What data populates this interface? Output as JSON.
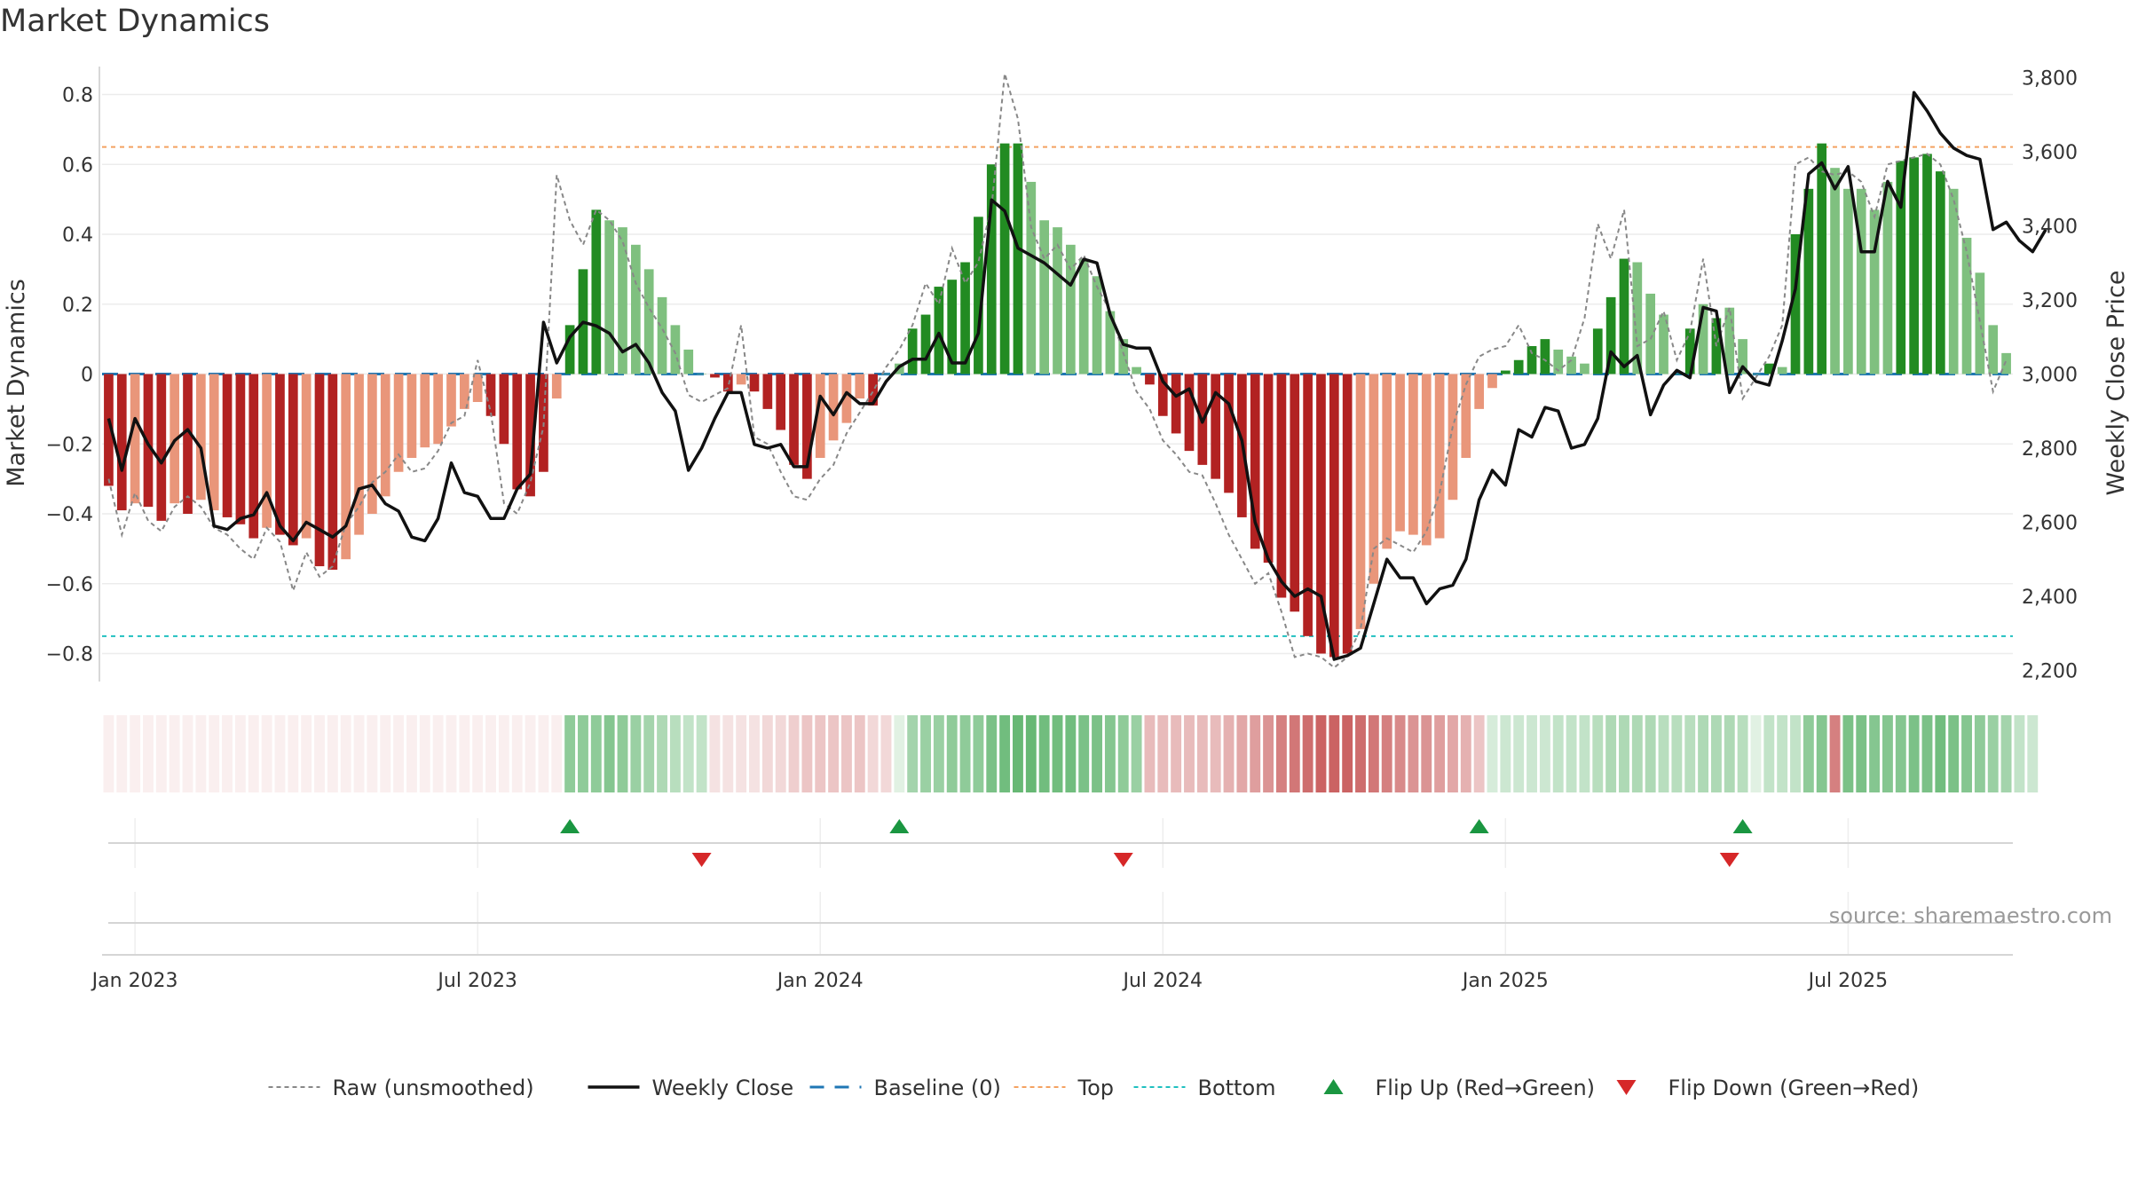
{
  "title": "Market Dynamics",
  "source": "source: sharemaestro.com",
  "chart_data": {
    "type": "bar",
    "title": "Market Dynamics",
    "ylabel_left": "Market Dynamics",
    "ylabel_right": "Weekly Close Price",
    "ylim_left": [
      -0.88,
      0.88
    ],
    "ylim_right": [
      2170,
      3830
    ],
    "yticks_left": [
      {
        "v": 0.8,
        "label": "0.8"
      },
      {
        "v": 0.6,
        "label": "0.6"
      },
      {
        "v": 0.4,
        "label": "0.4"
      },
      {
        "v": 0.2,
        "label": "0.2"
      },
      {
        "v": 0.0,
        "label": "0"
      },
      {
        "v": -0.2,
        "label": "−0.2"
      },
      {
        "v": -0.4,
        "label": "−0.4"
      },
      {
        "v": -0.6,
        "label": "−0.6"
      },
      {
        "v": -0.8,
        "label": "−0.8"
      }
    ],
    "yticks_right": [
      {
        "v": 3800,
        "label": "3,800"
      },
      {
        "v": 3600,
        "label": "3,600"
      },
      {
        "v": 3400,
        "label": "3,400"
      },
      {
        "v": 3200,
        "label": "3,200"
      },
      {
        "v": 3000,
        "label": "3,000"
      },
      {
        "v": 2800,
        "label": "2,800"
      },
      {
        "v": 2600,
        "label": "2,600"
      },
      {
        "v": 2400,
        "label": "2,400"
      },
      {
        "v": 2200,
        "label": "2,200"
      }
    ],
    "xticks": [
      {
        "week": 2,
        "label": "Jan 2023"
      },
      {
        "week": 28,
        "label": "Jul 2023"
      },
      {
        "week": 54,
        "label": "Jan 2024"
      },
      {
        "week": 80,
        "label": "Jul 2024"
      },
      {
        "week": 106,
        "label": "Jan 2025"
      },
      {
        "week": 132,
        "label": "Jul 2025"
      }
    ],
    "top_level": 0.65,
    "bottom_level": -0.75,
    "baseline": 0,
    "legend_position": "bottom",
    "colors": {
      "strong_red": "#b22222",
      "weak_red": "#e9967a",
      "strong_green": "#228b22",
      "weak_green": "#7fc07f",
      "raw": "#888888",
      "close": "#111111",
      "baseline": "#1f77b4",
      "top": "#f4a261",
      "bottom": "#20c0c0",
      "flip_up": "#1a9641",
      "flip_down": "#d62728"
    },
    "momentum": [
      -0.32,
      -0.39,
      -0.37,
      -0.38,
      -0.42,
      -0.37,
      -0.4,
      -0.36,
      -0.39,
      -0.41,
      -0.43,
      -0.47,
      -0.44,
      -0.46,
      -0.49,
      -0.47,
      -0.55,
      -0.56,
      -0.53,
      -0.46,
      -0.4,
      -0.35,
      -0.28,
      -0.24,
      -0.21,
      -0.2,
      -0.15,
      -0.1,
      -0.08,
      -0.12,
      -0.2,
      -0.33,
      -0.35,
      -0.28,
      -0.07,
      0.14,
      0.3,
      0.47,
      0.44,
      0.42,
      0.37,
      0.3,
      0.22,
      0.14,
      0.07,
      0.0,
      -0.01,
      -0.05,
      -0.03,
      -0.05,
      -0.1,
      -0.16,
      -0.26,
      -0.3,
      -0.24,
      -0.19,
      -0.14,
      -0.07,
      -0.09,
      0.0,
      0.03,
      0.13,
      0.17,
      0.25,
      0.27,
      0.32,
      0.45,
      0.6,
      0.66,
      0.66,
      0.55,
      0.44,
      0.42,
      0.37,
      0.33,
      0.28,
      0.18,
      0.1,
      0.02,
      -0.03,
      -0.12,
      -0.17,
      -0.22,
      -0.26,
      -0.3,
      -0.34,
      -0.41,
      -0.5,
      -0.54,
      -0.64,
      -0.68,
      -0.75,
      -0.8,
      -0.81,
      -0.8,
      -0.73,
      -0.6,
      -0.5,
      -0.45,
      -0.46,
      -0.49,
      -0.47,
      -0.36,
      -0.24,
      -0.1,
      -0.04,
      0.01,
      0.04,
      0.08,
      0.1,
      0.07,
      0.05,
      0.03,
      0.13,
      0.22,
      0.33,
      0.32,
      0.23,
      0.17,
      0.0,
      0.13,
      0.2,
      0.16,
      0.19,
      0.1,
      0.0,
      0.03,
      0.02,
      0.4,
      0.53,
      0.66,
      0.59,
      0.53,
      0.53,
      0.47,
      0.55,
      0.61,
      0.62,
      0.63,
      0.58,
      0.53,
      0.39,
      0.29,
      0.14,
      0.06
    ],
    "bar_shade": [
      "S",
      "S",
      "W",
      "S",
      "S",
      "W",
      "S",
      "W",
      "W",
      "S",
      "S",
      "S",
      "W",
      "S",
      "S",
      "W",
      "S",
      "S",
      "W",
      "W",
      "W",
      "W",
      "W",
      "W",
      "W",
      "W",
      "W",
      "W",
      "W",
      "S",
      "S",
      "S",
      "S",
      "S",
      "W",
      "S",
      "S",
      "S",
      "W",
      "W",
      "W",
      "W",
      "W",
      "W",
      "W",
      "W",
      "S",
      "S",
      "W",
      "S",
      "S",
      "S",
      "S",
      "S",
      "W",
      "W",
      "W",
      "W",
      "S",
      "W",
      "W",
      "S",
      "S",
      "S",
      "S",
      "S",
      "S",
      "S",
      "S",
      "S",
      "W",
      "W",
      "W",
      "W",
      "W",
      "W",
      "W",
      "W",
      "W",
      "S",
      "S",
      "S",
      "S",
      "S",
      "S",
      "S",
      "S",
      "S",
      "S",
      "S",
      "S",
      "S",
      "S",
      "S",
      "S",
      "W",
      "W",
      "W",
      "W",
      "W",
      "W",
      "W",
      "W",
      "W",
      "W",
      "W",
      "S",
      "S",
      "S",
      "S",
      "W",
      "W",
      "W",
      "S",
      "S",
      "S",
      "W",
      "W",
      "W",
      "S",
      "S",
      "W",
      "S",
      "W",
      "W",
      "W",
      "S",
      "W",
      "S",
      "S",
      "S",
      "W",
      "W",
      "W",
      "W",
      "W",
      "S",
      "S",
      "S",
      "S",
      "W",
      "W",
      "W",
      "W",
      "W"
    ],
    "raw": [
      -0.3,
      -0.46,
      -0.34,
      -0.42,
      -0.45,
      -0.38,
      -0.35,
      -0.38,
      -0.44,
      -0.46,
      -0.5,
      -0.53,
      -0.44,
      -0.48,
      -0.62,
      -0.51,
      -0.58,
      -0.55,
      -0.43,
      -0.38,
      -0.31,
      -0.28,
      -0.23,
      -0.28,
      -0.27,
      -0.22,
      -0.14,
      -0.12,
      0.04,
      -0.11,
      -0.37,
      -0.4,
      -0.31,
      -0.15,
      0.57,
      0.44,
      0.37,
      0.47,
      0.44,
      0.38,
      0.26,
      0.19,
      0.13,
      0.06,
      -0.06,
      -0.08,
      -0.06,
      -0.04,
      0.14,
      -0.18,
      -0.2,
      -0.28,
      -0.35,
      -0.36,
      -0.3,
      -0.26,
      -0.17,
      -0.11,
      -0.05,
      0.02,
      0.07,
      0.14,
      0.26,
      0.2,
      0.36,
      0.26,
      0.32,
      0.48,
      0.86,
      0.73,
      0.42,
      0.33,
      0.37,
      0.3,
      0.34,
      0.25,
      0.18,
      0.06,
      -0.05,
      -0.1,
      -0.19,
      -0.23,
      -0.28,
      -0.29,
      -0.37,
      -0.46,
      -0.53,
      -0.6,
      -0.57,
      -0.68,
      -0.81,
      -0.8,
      -0.81,
      -0.84,
      -0.81,
      -0.73,
      -0.5,
      -0.47,
      -0.49,
      -0.51,
      -0.45,
      -0.34,
      -0.15,
      -0.03,
      0.05,
      0.07,
      0.08,
      0.14,
      0.06,
      0.04,
      0.01,
      0.04,
      0.16,
      0.43,
      0.33,
      0.47,
      0.08,
      0.1,
      0.18,
      0.04,
      0.12,
      0.33,
      0.08,
      0.19,
      -0.07,
      -0.01,
      0.05,
      0.14,
      0.6,
      0.62,
      0.58,
      0.57,
      0.58,
      0.55,
      0.45,
      0.6,
      0.61,
      0.62,
      0.63,
      0.6,
      0.5,
      0.35,
      0.15,
      -0.05,
      0.04
    ],
    "close": [
      2880,
      2740,
      2880,
      2810,
      2760,
      2820,
      2850,
      2800,
      2590,
      2580,
      2610,
      2620,
      2680,
      2590,
      2550,
      2600,
      2580,
      2560,
      2590,
      2690,
      2700,
      2650,
      2630,
      2560,
      2550,
      2610,
      2760,
      2680,
      2670,
      2610,
      2610,
      2690,
      2730,
      3140,
      3030,
      3100,
      3140,
      3130,
      3110,
      3060,
      3080,
      3030,
      2950,
      2900,
      2740,
      2800,
      2880,
      2950,
      2950,
      2810,
      2800,
      2810,
      2750,
      2750,
      2940,
      2890,
      2950,
      2920,
      2920,
      2980,
      3020,
      3040,
      3040,
      3110,
      3030,
      3030,
      3110,
      3470,
      3440,
      3340,
      3320,
      3300,
      3270,
      3240,
      3310,
      3300,
      3160,
      3080,
      3070,
      3070,
      2980,
      2940,
      2960,
      2870,
      2950,
      2920,
      2820,
      2600,
      2500,
      2440,
      2400,
      2420,
      2400,
      2230,
      2240,
      2260,
      2380,
      2500,
      2450,
      2450,
      2380,
      2420,
      2430,
      2500,
      2660,
      2740,
      2700,
      2850,
      2830,
      2910,
      2900,
      2800,
      2810,
      2880,
      3060,
      3020,
      3050,
      2890,
      2970,
      3010,
      2990,
      3180,
      3170,
      2950,
      3020,
      2980,
      2970,
      3090,
      3230,
      3540,
      3570,
      3500,
      3560,
      3330,
      3330,
      3520,
      3450,
      3760,
      3710,
      3650,
      3610,
      3590,
      3580,
      3390,
      3410,
      3360,
      3330,
      3390
    ],
    "heat_strip": [
      -0.55,
      -0.55,
      -0.55,
      -0.55,
      -0.55,
      -0.55,
      -0.55,
      -0.55,
      -0.6,
      -0.6,
      -0.6,
      -0.6,
      -0.6,
      -0.6,
      -0.62,
      -0.62,
      -0.62,
      -0.62,
      -0.5,
      -0.4,
      -0.4,
      -0.4,
      -0.35,
      -0.3,
      -0.3,
      -0.3,
      -0.25,
      -0.25,
      -0.2,
      -0.2,
      -0.2,
      -0.2,
      -0.2,
      -0.2,
      -0.15,
      0.55,
      0.55,
      0.55,
      0.6,
      0.55,
      0.5,
      0.45,
      0.4,
      0.35,
      0.3,
      0.3,
      0.15,
      0.15,
      0.15,
      0.15,
      0.2,
      0.2,
      0.25,
      0.3,
      0.3,
      0.3,
      0.3,
      0.3,
      0.2,
      0.2,
      0.15,
      0.45,
      0.5,
      0.5,
      0.55,
      0.55,
      0.55,
      0.65,
      0.7,
      0.75,
      0.75,
      0.7,
      0.7,
      0.7,
      0.65,
      0.65,
      0.6,
      0.55,
      0.5,
      0.35,
      0.35,
      0.35,
      0.35,
      0.35,
      0.35,
      0.4,
      0.45,
      0.5,
      0.55,
      0.65,
      0.7,
      0.75,
      0.8,
      0.8,
      0.8,
      0.75,
      0.7,
      0.65,
      0.6,
      0.55,
      0.55,
      0.5,
      0.45,
      0.4,
      0.3,
      0.2,
      0.25,
      0.25,
      0.25,
      0.25,
      0.3,
      0.3,
      0.3,
      0.35,
      0.4,
      0.4,
      0.4,
      0.4,
      0.35,
      0.35,
      0.35,
      0.4,
      0.4,
      0.4,
      0.35,
      0.15,
      0.3,
      0.3,
      0.3,
      0.55,
      0.6,
      0.65,
      0.65,
      0.65,
      0.6,
      0.6,
      0.6,
      0.65,
      0.65,
      0.7,
      0.65,
      0.6,
      0.55,
      0.5,
      0.45,
      0.3,
      0.25
    ],
    "heat_strip_sign": [
      -1,
      -1,
      -1,
      -1,
      -1,
      -1,
      -1,
      -1,
      -1,
      -1,
      -1,
      -1,
      -1,
      -1,
      -1,
      -1,
      -1,
      -1,
      -1,
      -1,
      -1,
      -1,
      -1,
      -1,
      -1,
      -1,
      -1,
      -1,
      -1,
      -1,
      -1,
      -1,
      -1,
      -1,
      -1,
      1,
      1,
      1,
      1,
      1,
      1,
      1,
      1,
      1,
      1,
      1,
      -1,
      -1,
      -1,
      -1,
      -1,
      -1,
      -1,
      -1,
      -1,
      -1,
      -1,
      -1,
      -1,
      -1,
      1,
      1,
      1,
      1,
      1,
      1,
      1,
      1,
      1,
      1,
      1,
      1,
      1,
      1,
      1,
      1,
      1,
      1,
      1,
      -1,
      -1,
      -1,
      -1,
      -1,
      -1,
      -1,
      -1,
      -1,
      -1,
      -1,
      -1,
      -1,
      -1,
      -1,
      -1,
      -1,
      -1,
      -1,
      -1,
      -1,
      -1,
      -1,
      -1,
      -1,
      -1,
      1,
      1,
      1,
      1,
      1,
      1,
      1,
      1,
      1,
      1,
      1,
      1,
      1,
      1,
      1,
      1,
      1,
      1,
      1,
      1,
      1,
      1,
      1,
      1,
      1,
      1,
      -1,
      1,
      1,
      1,
      1,
      1,
      1,
      1,
      1,
      1,
      1,
      1,
      1,
      1,
      1,
      1,
      1,
      1,
      1,
      1,
      1,
      1
    ],
    "flips": [
      {
        "week": 35,
        "direction": "up"
      },
      {
        "week": 45,
        "direction": "down"
      },
      {
        "week": 60,
        "direction": "up"
      },
      {
        "week": 77,
        "direction": "down"
      },
      {
        "week": 104,
        "direction": "up"
      },
      {
        "week": 123,
        "direction": "down"
      },
      {
        "week": 124,
        "direction": "up"
      }
    ],
    "legend": [
      {
        "key": "raw",
        "label": "Raw (unsmoothed)",
        "style": "dotted-line",
        "color": "#888888"
      },
      {
        "key": "close",
        "label": "Weekly Close",
        "style": "solid-line",
        "color": "#111111"
      },
      {
        "key": "baseline",
        "label": "Baseline (0)",
        "style": "dashed-line",
        "color": "#1f77b4"
      },
      {
        "key": "top",
        "label": "Top",
        "style": "dotted-line",
        "color": "#f4a261"
      },
      {
        "key": "bottom",
        "label": "Bottom",
        "style": "dotted-line",
        "color": "#20c0c0"
      },
      {
        "key": "flip_up",
        "label": "Flip Up (Red→Green)",
        "style": "triangle-up",
        "color": "#1a9641"
      },
      {
        "key": "flip_down",
        "label": "Flip Down (Green→Red)",
        "style": "triangle-down",
        "color": "#d62728"
      }
    ]
  }
}
